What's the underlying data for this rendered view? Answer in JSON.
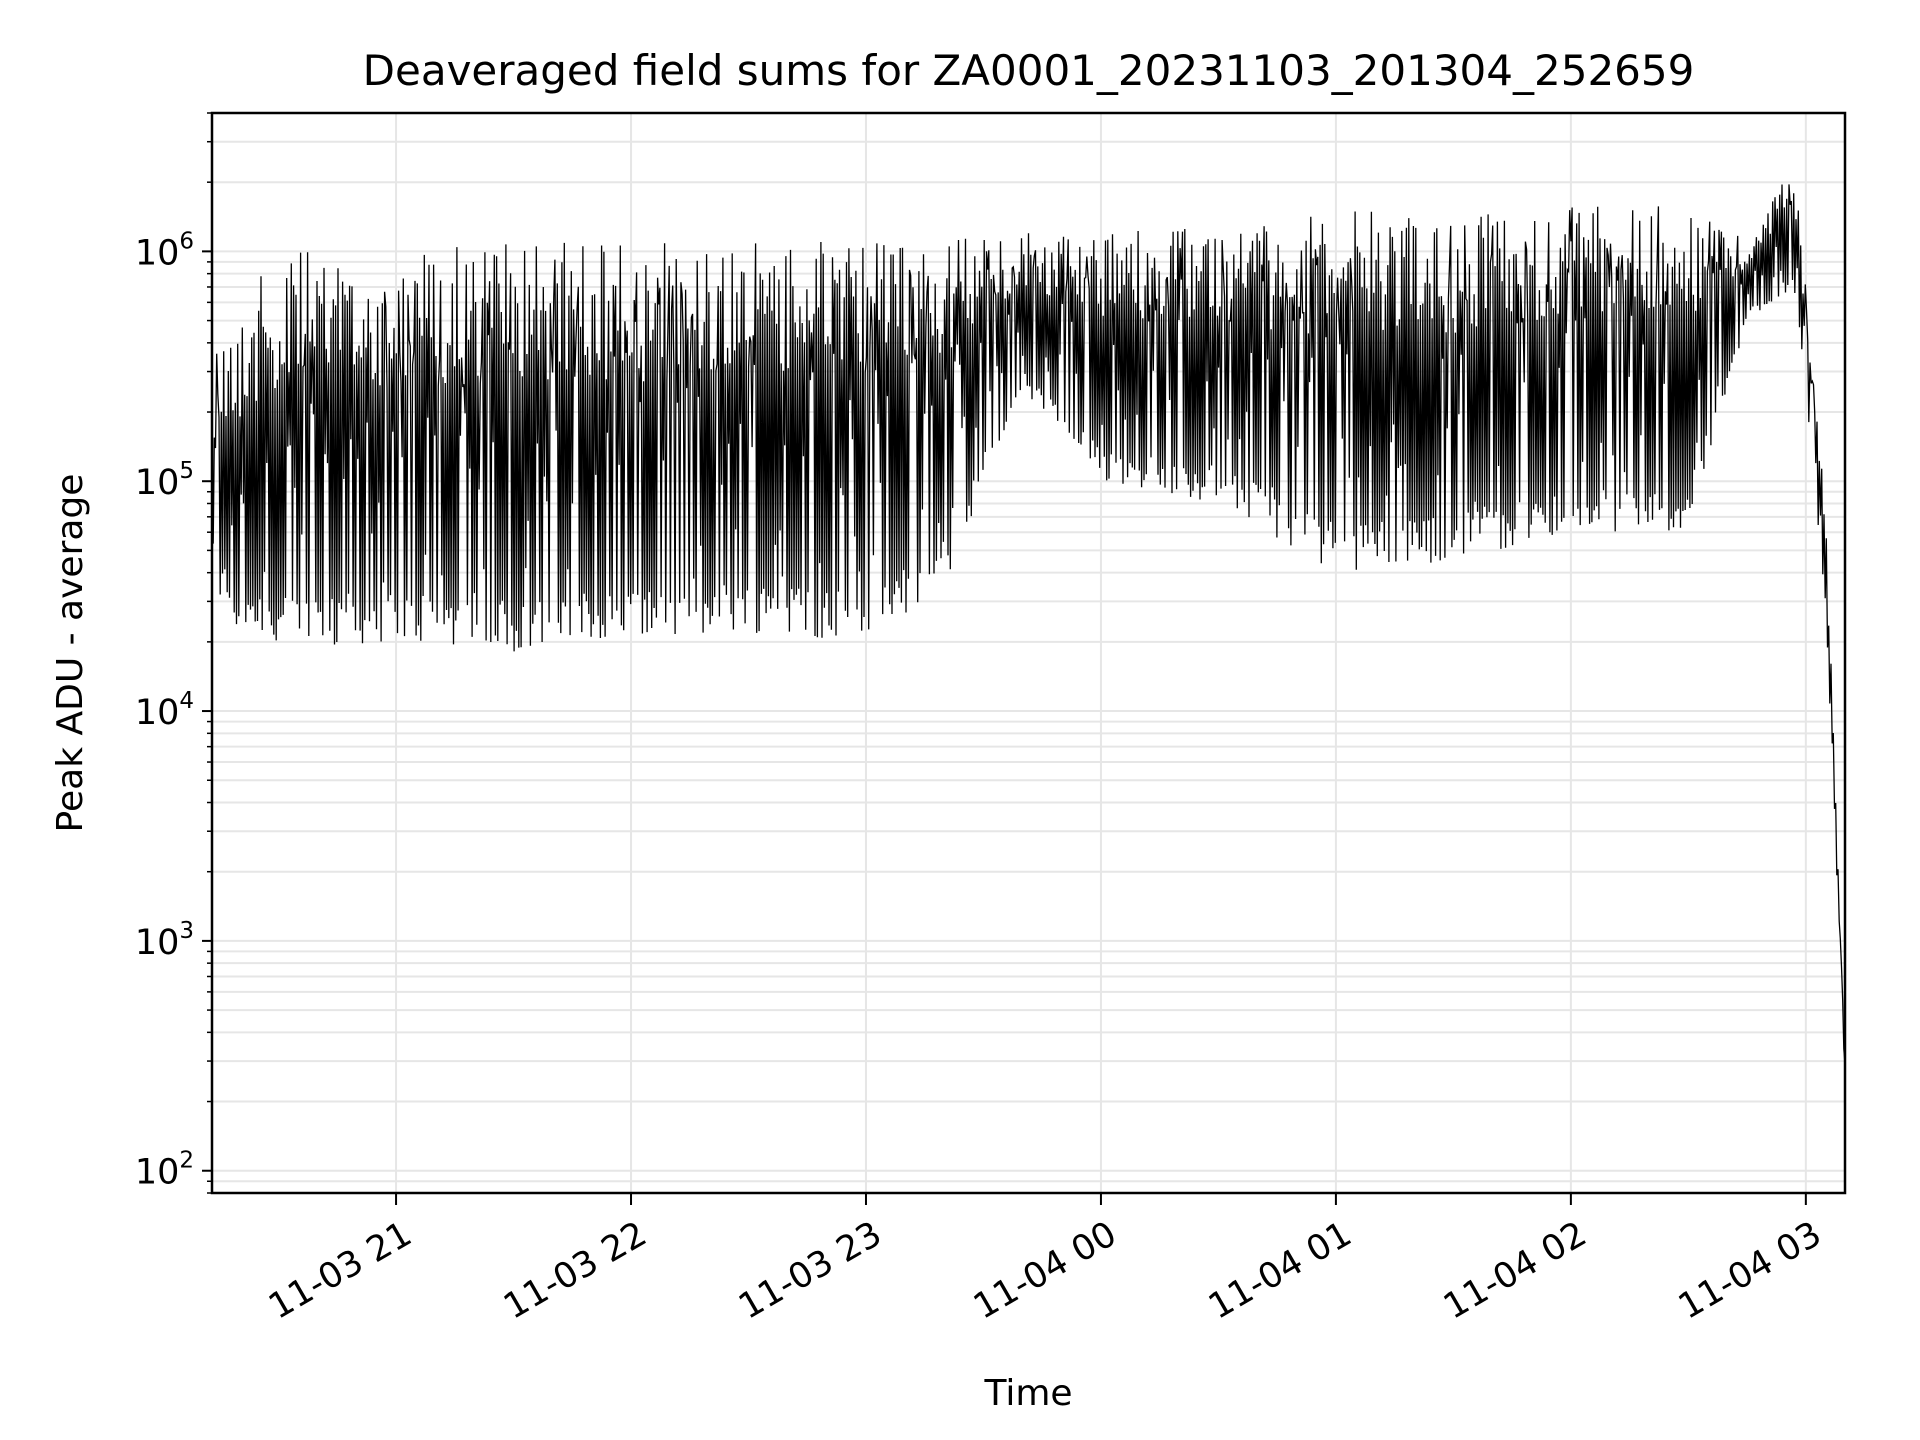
{
  "chart_data": {
    "type": "line",
    "title": "Deaveraged field sums for ZA0001_20231103_201304_252659",
    "xlabel": "Time",
    "ylabel": "Peak ADU - average",
    "yscale": "log",
    "ylim": [
      80,
      4000000
    ],
    "xlim": [
      "2023-11-03 20:13",
      "2023-11-04 03:10"
    ],
    "grid": true,
    "grid_color": "#e6e6e6",
    "line_color": "#000000",
    "x_ticks": [
      {
        "label": "11-03 21",
        "value": "2023-11-03 21:00"
      },
      {
        "label": "11-03 22",
        "value": "2023-11-03 22:00"
      },
      {
        "label": "11-03 23",
        "value": "2023-11-03 23:00"
      },
      {
        "label": "11-04 00",
        "value": "2023-11-04 00:00"
      },
      {
        "label": "11-04 01",
        "value": "2023-11-04 01:00"
      },
      {
        "label": "11-04 02",
        "value": "2023-11-04 02:00"
      },
      {
        "label": "11-04 03",
        "value": "2023-11-04 03:00"
      }
    ],
    "y_ticks": [
      {
        "base": "10",
        "exp": "2",
        "value": 100
      },
      {
        "base": "10",
        "exp": "3",
        "value": 1000
      },
      {
        "base": "10",
        "exp": "4",
        "value": 10000
      },
      {
        "base": "10",
        "exp": "5",
        "value": 100000
      },
      {
        "base": "10",
        "exp": "6",
        "value": 1000000
      }
    ],
    "series": [
      {
        "name": "",
        "description_points": [
          {
            "x": "2023-11-03 20:13",
            "y_high": 400000,
            "y_low": 25000
          },
          {
            "x": "2023-11-03 20:30",
            "y_high": 1000000,
            "y_low": 18000
          },
          {
            "x": "2023-11-03 21:00",
            "y_high": 1000000,
            "y_low": 20000
          },
          {
            "x": "2023-11-03 21:30",
            "y_high": 1100000,
            "y_low": 18000
          },
          {
            "x": "2023-11-03 22:00",
            "y_high": 1100000,
            "y_low": 20000
          },
          {
            "x": "2023-11-03 22:30",
            "y_high": 1100000,
            "y_low": 22000
          },
          {
            "x": "2023-11-03 23:00",
            "y_high": 1100000,
            "y_low": 20000
          },
          {
            "x": "2023-11-03 23:20",
            "y_high": 1200000,
            "y_low": 35000
          },
          {
            "x": "2023-11-03 23:40",
            "y_high": 1200000,
            "y_low": 250000
          },
          {
            "x": "2023-11-04 00:00",
            "y_high": 1200000,
            "y_low": 100000
          },
          {
            "x": "2023-11-04 00:30",
            "y_high": 1300000,
            "y_low": 80000
          },
          {
            "x": "2023-11-04 01:00",
            "y_high": 1500000,
            "y_low": 40000
          },
          {
            "x": "2023-11-04 01:30",
            "y_high": 1500000,
            "y_low": 45000
          },
          {
            "x": "2023-11-04 02:00",
            "y_high": 1600000,
            "y_low": 60000
          },
          {
            "x": "2023-11-04 02:30",
            "y_high": 1600000,
            "y_low": 60000
          },
          {
            "x": "2023-11-04 02:45",
            "y_high": 1100000,
            "y_low": 500000
          },
          {
            "x": "2023-11-04 02:57",
            "y_high": 2500000,
            "y_low": 700000
          },
          {
            "x": "2023-11-04 03:05",
            "y_high": 80000,
            "y_low": 30000
          },
          {
            "x": "2023-11-04 03:10",
            "y_high": 300,
            "y_low": 250
          }
        ]
      }
    ]
  }
}
